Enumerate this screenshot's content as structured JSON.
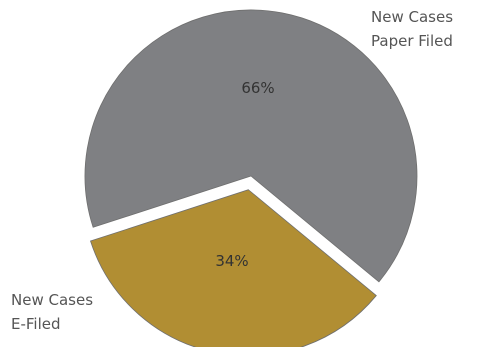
{
  "chart_data": {
    "type": "pie",
    "slices": [
      {
        "name": "New Cases Paper Filed",
        "label_lines": [
          "New Cases",
          "Paper Filed"
        ],
        "value": 66,
        "percent_label": "66%",
        "color": "#7f8083",
        "exploded": false
      },
      {
        "name": "New Cases E-Filed",
        "label_lines": [
          "New Cases",
          "E-Filed"
        ],
        "value": 34,
        "percent_label": "34%",
        "color": "#b18e33",
        "exploded": true
      }
    ],
    "title": "",
    "legend": "none"
  }
}
